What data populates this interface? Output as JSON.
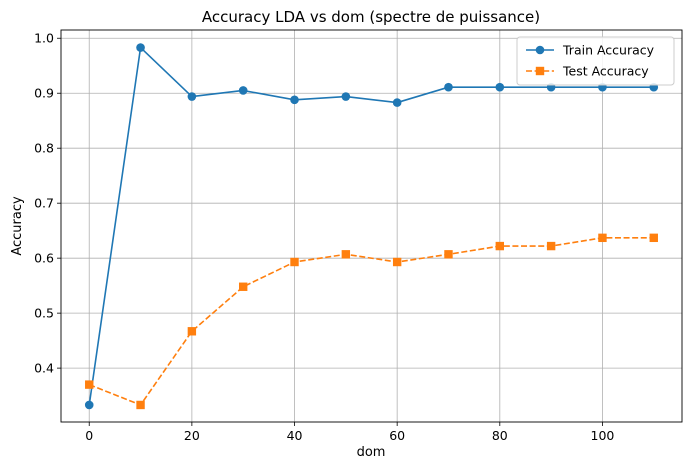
{
  "chart_data": {
    "type": "line",
    "title": "Accuracy LDA vs dom (spectre de puissance)",
    "xlabel": "dom",
    "ylabel": "Accuracy",
    "x": [
      0,
      10,
      20,
      30,
      40,
      50,
      60,
      70,
      80,
      90,
      100,
      110
    ],
    "xlim": [
      -5.5,
      115.5
    ],
    "ylim": [
      0.302,
      1.015
    ],
    "xticks": [
      0,
      20,
      40,
      60,
      80,
      100
    ],
    "yticks": [
      0.4,
      0.5,
      0.6,
      0.7,
      0.8,
      0.9,
      1.0
    ],
    "xtick_labels": [
      "0",
      "20",
      "40",
      "60",
      "80",
      "100"
    ],
    "ytick_labels": [
      "0.4",
      "0.5",
      "0.6",
      "0.7",
      "0.8",
      "0.9",
      "1.0"
    ],
    "grid": true,
    "legend_position": "top-right",
    "series": [
      {
        "name": "Train Accuracy",
        "color": "#1f77b4",
        "marker": "circle",
        "linestyle": "solid",
        "values": [
          0.333,
          0.983,
          0.894,
          0.905,
          0.888,
          0.894,
          0.883,
          0.911,
          0.911,
          0.911,
          0.911,
          0.911
        ]
      },
      {
        "name": "Test Accuracy",
        "color": "#ff7f0e",
        "marker": "square",
        "linestyle": "dashed",
        "values": [
          0.37,
          0.333,
          0.467,
          0.548,
          0.593,
          0.607,
          0.593,
          0.607,
          0.622,
          0.622,
          0.637,
          0.637
        ]
      }
    ]
  }
}
